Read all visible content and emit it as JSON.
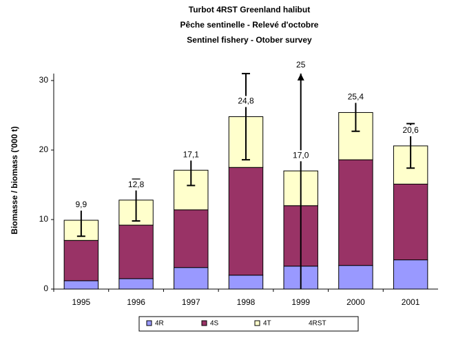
{
  "chart_data": {
    "type": "stacked_bar",
    "title": [
      "Turbot 4RST Greenland halibut",
      "Pêche sentinelle - Relevé d'octobre",
      "Sentinel fishery - Otober survey"
    ],
    "y_label": "Biomasse / biomass ('000 t)",
    "categories": [
      "1995",
      "1996",
      "1997",
      "1998",
      "1999",
      "2000",
      "2001"
    ],
    "series": [
      {
        "name": "4R",
        "color": "#9999ff",
        "values": [
          1.2,
          1.5,
          3.1,
          2.0,
          3.3,
          3.4,
          4.2
        ]
      },
      {
        "name": "4S",
        "color": "#993366",
        "values": [
          5.8,
          7.7,
          8.3,
          15.5,
          8.7,
          15.2,
          10.9
        ]
      },
      {
        "name": "4T",
        "color": "#ffffcc",
        "values": [
          2.9,
          3.6,
          5.7,
          7.3,
          5.0,
          6.8,
          5.5
        ]
      }
    ],
    "total": {
      "name": "4RST",
      "values": [
        9.9,
        12.8,
        17.1,
        24.8,
        17.0,
        25.4,
        20.6
      ],
      "value_labels": [
        "9,9",
        "12,8",
        "17,1",
        "24,8",
        "17,0",
        "25,4",
        "20,6"
      ],
      "errors": [
        2.3,
        3.0,
        2.2,
        6.2,
        25,
        2.7,
        3.2
      ]
    },
    "ylim": [
      0,
      31
    ],
    "yticks": [
      0,
      10,
      20,
      30
    ]
  }
}
